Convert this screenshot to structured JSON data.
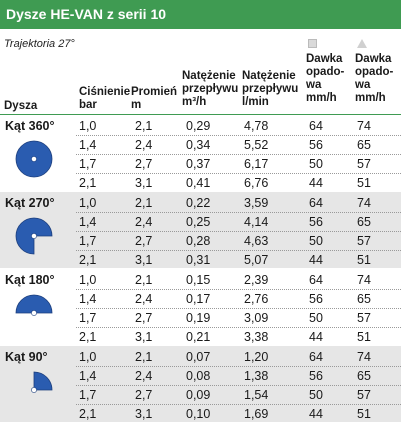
{
  "title": "Dysze HE-VAN z serii 10",
  "subtitle": "Trajektoria 27°",
  "headers": {
    "nozzle": "Dysza",
    "pressure": [
      "Ciśnienie",
      "bar"
    ],
    "radius": [
      "Promień",
      "m"
    ],
    "flow_m3h": [
      "Natężenie",
      "przepływu",
      "m³/h"
    ],
    "flow_lmin": [
      "Natężenie",
      "przepływu",
      "l/min"
    ],
    "precip_square": [
      "Dawka",
      "opado-",
      "wa",
      "mm/h"
    ],
    "precip_triangle": [
      "Dawka",
      "opado-",
      "wa",
      "mm/h"
    ]
  },
  "groups": [
    {
      "label": "Kąt 360°",
      "icon": "circle-360-icon",
      "arc": 360,
      "rows": [
        [
          "1,0",
          "2,1",
          "0,29",
          "4,78",
          "64",
          "74"
        ],
        [
          "1,4",
          "2,4",
          "0,34",
          "5,52",
          "56",
          "65"
        ],
        [
          "1,7",
          "2,7",
          "0,37",
          "6,17",
          "50",
          "57"
        ],
        [
          "2,1",
          "3,1",
          "0,41",
          "6,76",
          "44",
          "51"
        ]
      ]
    },
    {
      "label": "Kąt 270°",
      "icon": "sector-270-icon",
      "arc": 270,
      "rows": [
        [
          "1,0",
          "2,1",
          "0,22",
          "3,59",
          "64",
          "74"
        ],
        [
          "1,4",
          "2,4",
          "0,25",
          "4,14",
          "56",
          "65"
        ],
        [
          "1,7",
          "2,7",
          "0,28",
          "4,63",
          "50",
          "57"
        ],
        [
          "2,1",
          "3,1",
          "0,31",
          "5,07",
          "44",
          "51"
        ]
      ]
    },
    {
      "label": "Kąt 180°",
      "icon": "sector-180-icon",
      "arc": 180,
      "rows": [
        [
          "1,0",
          "2,1",
          "0,15",
          "2,39",
          "64",
          "74"
        ],
        [
          "1,4",
          "2,4",
          "0,17",
          "2,76",
          "56",
          "65"
        ],
        [
          "1,7",
          "2,7",
          "0,19",
          "3,09",
          "50",
          "57"
        ],
        [
          "2,1",
          "3,1",
          "0,21",
          "3,38",
          "44",
          "51"
        ]
      ]
    },
    {
      "label": "Kąt 90°",
      "icon": "sector-90-icon",
      "arc": 90,
      "rows": [
        [
          "1,0",
          "2,1",
          "0,07",
          "1,20",
          "64",
          "74"
        ],
        [
          "1,4",
          "2,4",
          "0,08",
          "1,38",
          "56",
          "65"
        ],
        [
          "1,7",
          "2,7",
          "0,09",
          "1,54",
          "50",
          "57"
        ],
        [
          "2,1",
          "3,1",
          "0,10",
          "1,69",
          "44",
          "51"
        ]
      ]
    }
  ],
  "colors": {
    "header_green": "#3f9b52",
    "shade": "#e6e6e6",
    "icon_fill": "#2a5cb0"
  }
}
